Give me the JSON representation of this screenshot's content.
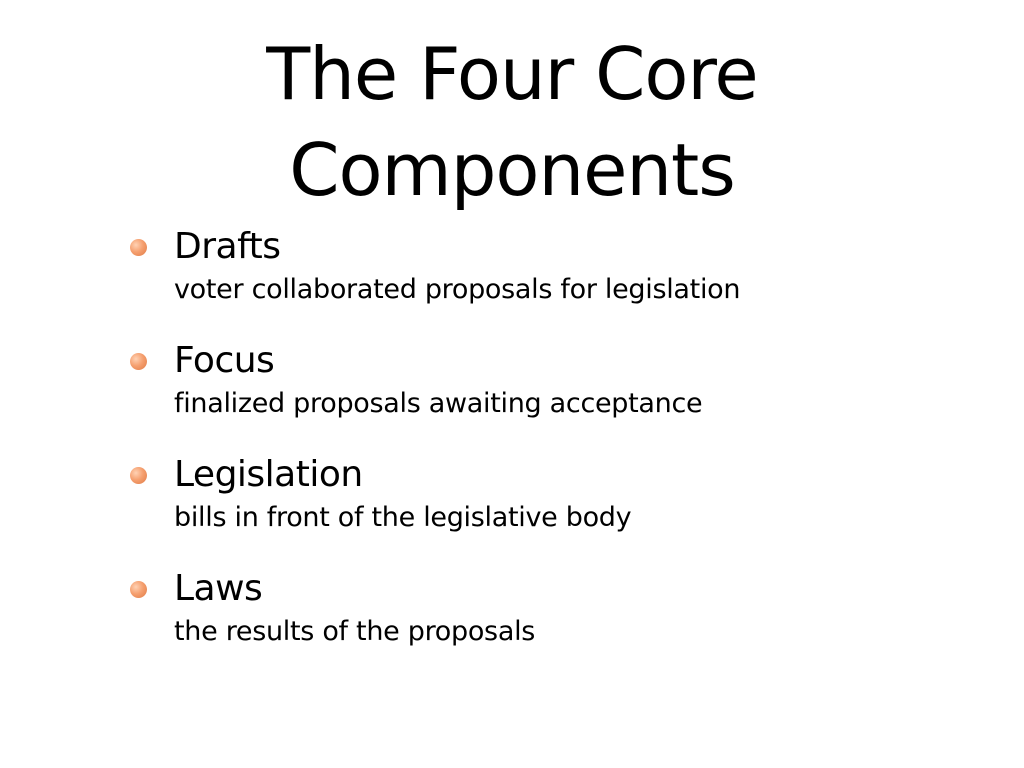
{
  "slide": {
    "title_lines": [
      "The Four Core",
      "Components"
    ],
    "bullet_color": "#f0905a",
    "items": [
      {
        "heading": "Drafts",
        "description": "voter collaborated proposals for legislation"
      },
      {
        "heading": "Focus",
        "description": "finalized proposals awaiting acceptance"
      },
      {
        "heading": "Legislation",
        "description": "bills in front of the legislative body"
      },
      {
        "heading": "Laws",
        "description": "the results of the proposals"
      }
    ]
  }
}
